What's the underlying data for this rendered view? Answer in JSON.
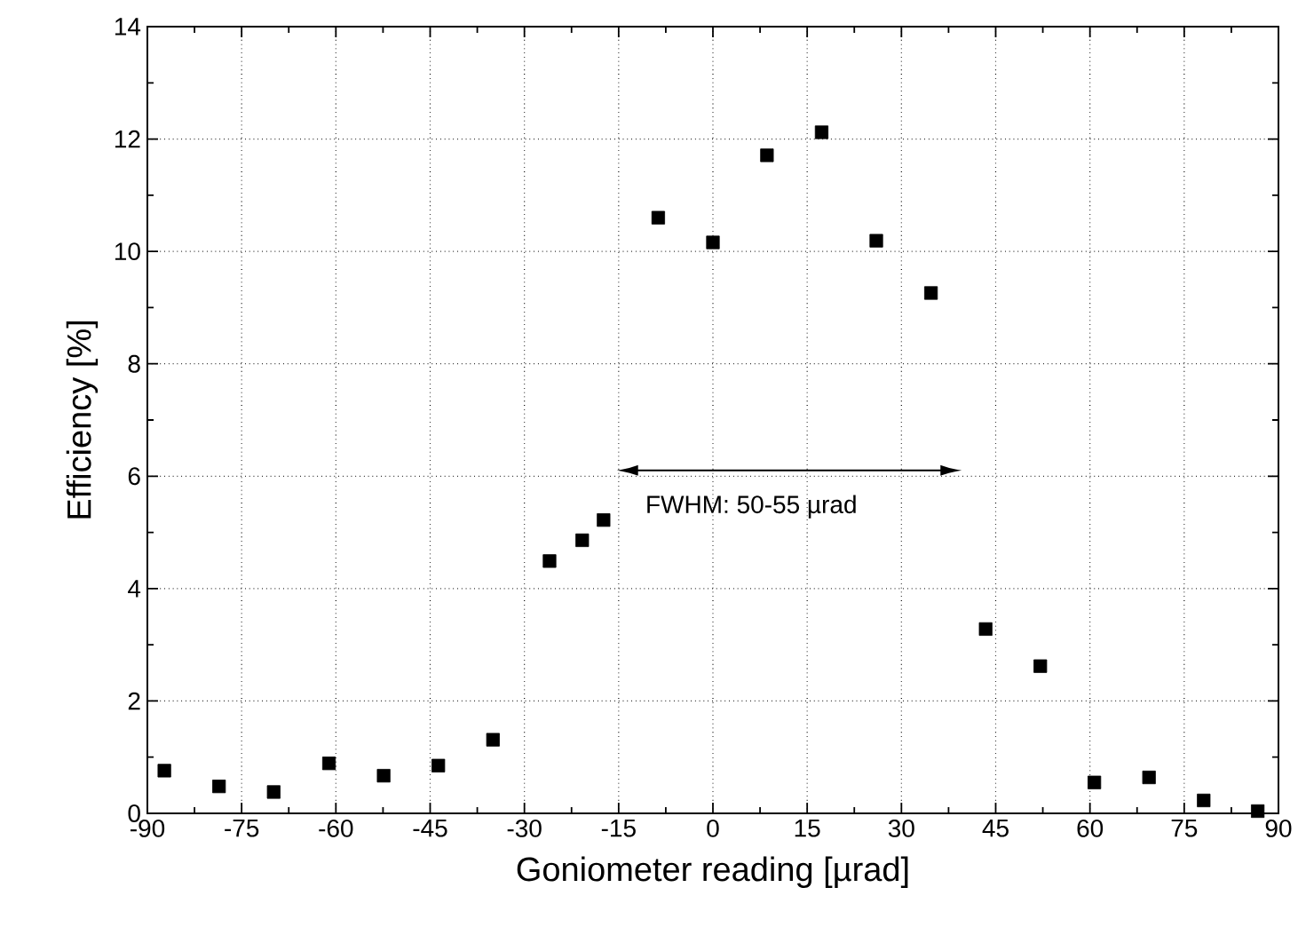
{
  "chart_data": {
    "type": "scatter",
    "xlabel": "Goniometer reading [µrad]",
    "ylabel": "Efficiency [%]",
    "x": [
      -87.3,
      -78.6,
      -69.9,
      -61.1,
      -52.4,
      -43.7,
      -35.0,
      -26.0,
      -20.8,
      -17.4,
      -8.7,
      0,
      8.6,
      17.3,
      26.0,
      34.7,
      43.4,
      52.1,
      60.7,
      69.4,
      78.1,
      86.7
    ],
    "series": [
      {
        "color": "#000000",
        "values": [
          0.76,
          0.48,
          0.38,
          0.89,
          0.67,
          0.85,
          1.31,
          4.49,
          4.86,
          5.22,
          10.6,
          10.16,
          11.71,
          12.12,
          10.19,
          9.26,
          3.28,
          2.62,
          0.55,
          0.64,
          0.23,
          0.04
        ]
      }
    ],
    "marker": "square",
    "grid": true,
    "xlim": [
      -90,
      90
    ],
    "xticks": [
      -90,
      -75,
      -60,
      -45,
      -30,
      -15,
      0,
      15,
      30,
      45,
      60,
      75,
      90
    ],
    "ylim": [
      0,
      14
    ],
    "yticks": [
      0,
      2,
      4,
      6,
      8,
      10,
      12,
      14
    ],
    "annotations": [
      "FWHM: 50-55 µrad"
    ]
  }
}
